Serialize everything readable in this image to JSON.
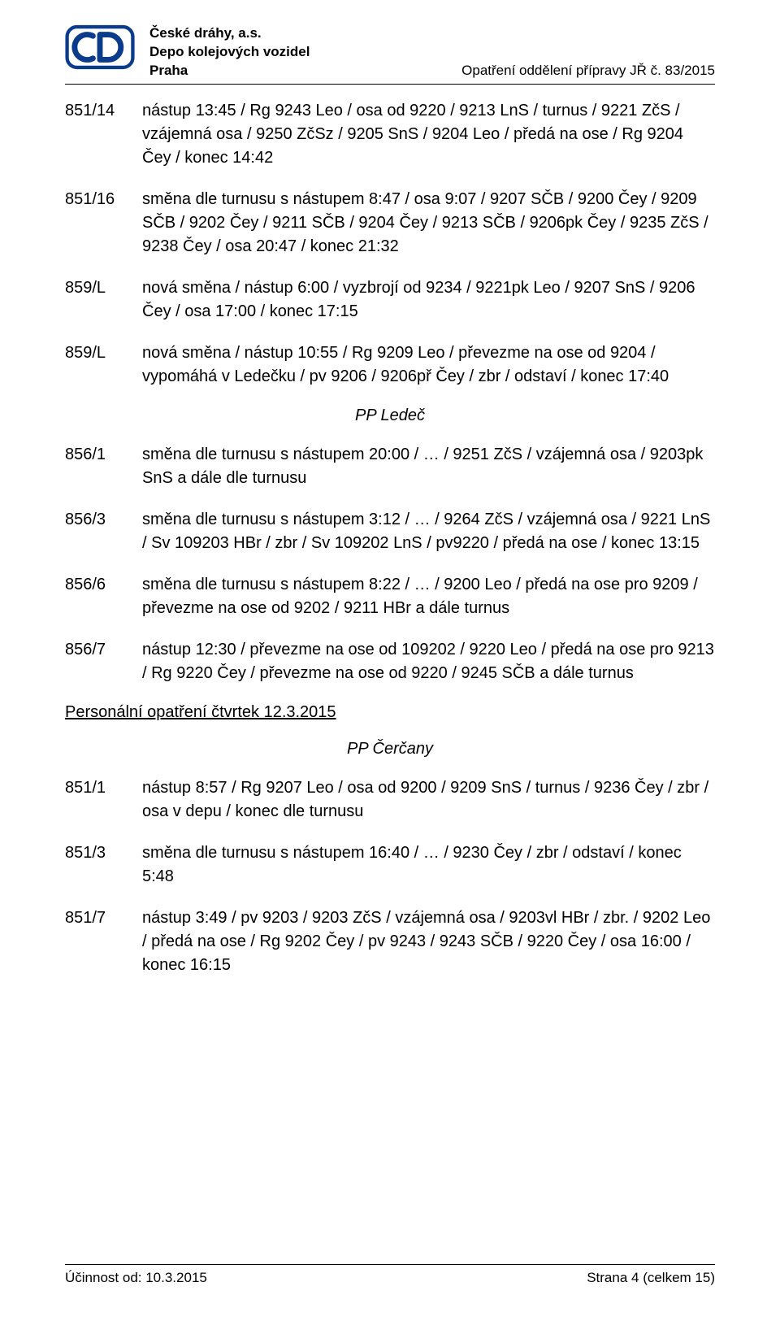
{
  "header": {
    "company": "České dráhy, a.s.",
    "dept": "Depo kolejových vozidel",
    "city": "Praha",
    "doc_ref": "Opatření oddělení přípravy JŘ  č. 83/2015"
  },
  "entries_1": [
    {
      "code": "851/14",
      "text": "nástup 13:45 / Rg 9243 Leo / osa od 9220 / 9213 LnS / turnus / 9221 ZčS / vzájemná osa / 9250 ZčSz / 9205 SnS / 9204 Leo / předá na ose / Rg 9204 Čey / konec 14:42"
    },
    {
      "code": "851/16",
      "text": "směna dle turnusu s nástupem 8:47 / osa 9:07 / 9207 SČB / 9200 Čey / 9209 SČB / 9202 Čey / 9211 SČB / 9204 Čey / 9213 SČB / 9206pk Čey / 9235 ZčS / 9238 Čey / osa 20:47 / konec 21:32"
    },
    {
      "code": "859/L",
      "text": "nová směna / nástup 6:00 / vyzbrojí od 9234 / 9221pk Leo / 9207 SnS / 9206 Čey / osa 17:00 / konec 17:15"
    },
    {
      "code": "859/L",
      "text": "nová směna / nástup 10:55 / Rg 9209 Leo / převezme na ose od 9204 / vypomáhá v Ledečku / pv 9206 / 9206př Čey / zbr / odstaví / konec 17:40"
    }
  ],
  "label_1": "PP Ledeč",
  "entries_2": [
    {
      "code": "856/1",
      "text": "směna dle turnusu s nástupem 20:00 / … / 9251 ZčS / vzájemná osa / 9203pk SnS a dále dle turnusu"
    },
    {
      "code": "856/3",
      "text": "směna dle turnusu s nástupem 3:12 / … / 9264 ZčS / vzájemná osa / 9221 LnS / Sv 109203 HBr / zbr / Sv 109202 LnS / pv9220 / předá na ose / konec 13:15"
    },
    {
      "code": "856/6",
      "text": "směna dle turnusu s nástupem 8:22 / … / 9200 Leo / předá na ose pro 9209 / převezme na ose od 9202 / 9211 HBr a dále turnus"
    },
    {
      "code": "856/7",
      "text": "nástup 12:30 / převezme na ose od 109202 / 9220 Leo / předá na ose pro 9213 / Rg 9220 Čey / převezme na ose od 9220 / 9245 SČB a dále turnus"
    }
  ],
  "heading": "Personální opatření čtvrtek 12.3.2015",
  "label_2": "PP Čerčany",
  "entries_3": [
    {
      "code": "851/1",
      "text": "nástup 8:57 / Rg 9207 Leo / osa od 9200 / 9209 SnS / turnus / 9236 Čey / zbr / osa v depu / konec dle turnusu"
    },
    {
      "code": "851/3",
      "text": "směna dle turnusu s nástupem 16:40 / … / 9230 Čey / zbr / odstaví / konec 5:48"
    },
    {
      "code": "851/7",
      "text": "nástup 3:49 / pv 9203 / 9203 ZčS / vzájemná osa / 9203vl HBr / zbr. / 9202 Leo / předá na ose / Rg 9202 Čey / pv 9243 / 9243 SČB / 9220 Čey / osa 16:00 /  konec 16:15"
    }
  ],
  "footer": {
    "left": "Účinnost od: 10.3.2015",
    "right": "Strana 4 (celkem 15)"
  },
  "logo_colors": {
    "primary": "#0b3c8c",
    "bg": "#ffffff"
  }
}
